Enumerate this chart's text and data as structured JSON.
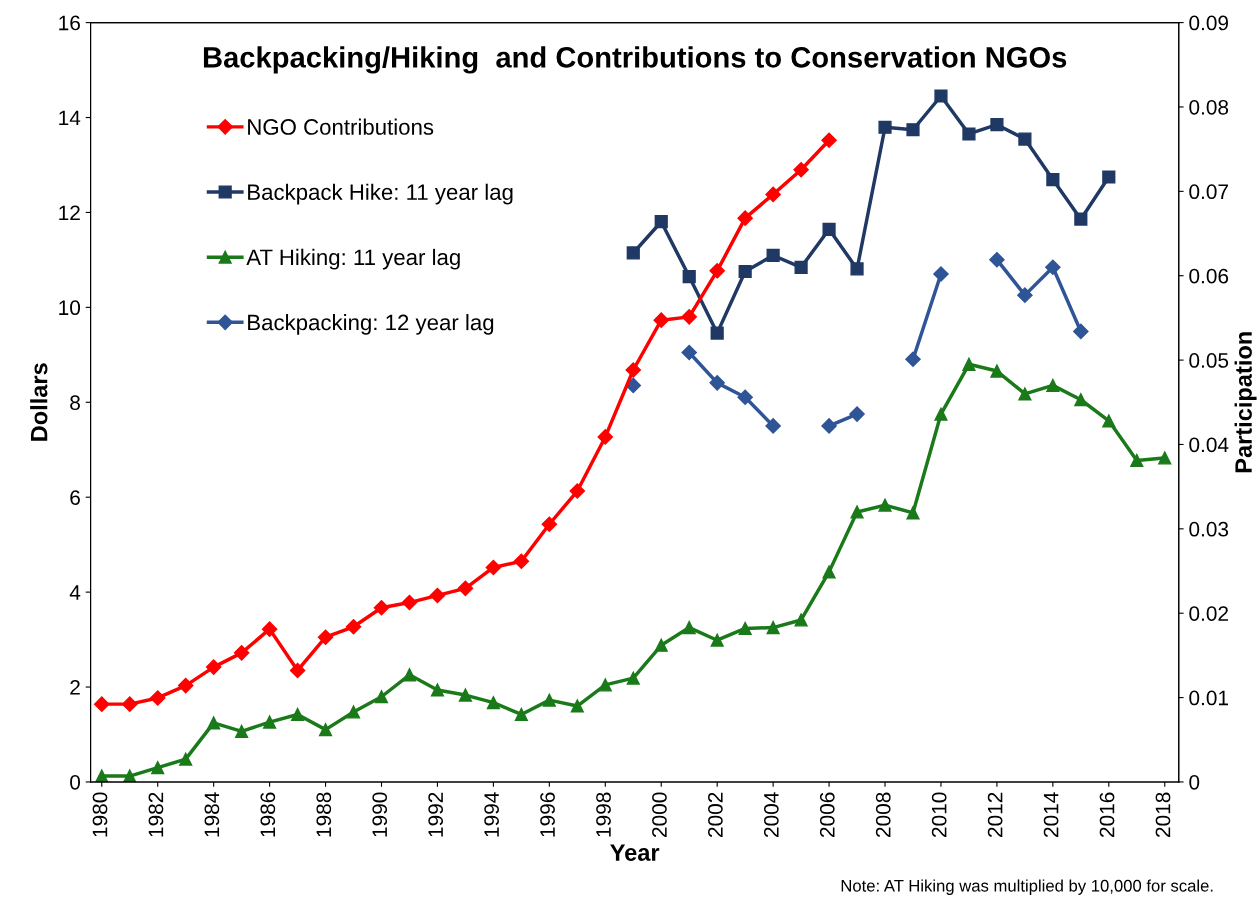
{
  "chart_data": {
    "type": "line",
    "title": "Backpacking/Hiking  and Contributions to Conservation NGOs",
    "xlabel": "Year",
    "ylabel": "Dollars",
    "y2label": "Participation",
    "x": [
      1980,
      1981,
      1982,
      1983,
      1984,
      1985,
      1986,
      1987,
      1988,
      1989,
      1990,
      1991,
      1992,
      1993,
      1994,
      1995,
      1996,
      1997,
      1998,
      1999,
      2000,
      2001,
      2002,
      2003,
      2004,
      2005,
      2006,
      2007,
      2008,
      2009,
      2010,
      2011,
      2012,
      2013,
      2014,
      2015,
      2016,
      2017,
      2018
    ],
    "xlim": [
      1979.6,
      2018.5
    ],
    "xticks": [
      1980,
      1982,
      1984,
      1986,
      1988,
      1990,
      1992,
      1994,
      1996,
      1998,
      2000,
      2002,
      2004,
      2006,
      2008,
      2010,
      2012,
      2014,
      2016,
      2018
    ],
    "ylim": [
      0,
      16
    ],
    "yticks": [
      0,
      2,
      4,
      6,
      8,
      10,
      12,
      14,
      16
    ],
    "y2lim": [
      0,
      0.09
    ],
    "y2ticks": [
      {
        "value": 0,
        "label": "0"
      },
      {
        "value": 0.01,
        "label": "0.01"
      },
      {
        "value": 0.02,
        "label": "0.02"
      },
      {
        "value": 0.03,
        "label": "0.03"
      },
      {
        "value": 0.04,
        "label": "0.04"
      },
      {
        "value": 0.05,
        "label": "0.05"
      },
      {
        "value": 0.06,
        "label": "0.06"
      },
      {
        "value": 0.07,
        "label": "0.07"
      },
      {
        "value": 0.08,
        "label": "0.08"
      },
      {
        "value": 0.09,
        "label": "0.09"
      }
    ],
    "grid": false,
    "legend": "top left",
    "line_style": "solid",
    "series": [
      {
        "name": "NGO Contributions",
        "color": "#ff0000",
        "marker": "diamond",
        "x": [
          1980,
          1981,
          1982,
          1983,
          1984,
          1985,
          1986,
          1987,
          1988,
          1989,
          1990,
          1991,
          1992,
          1993,
          1994,
          1995,
          1996,
          1997,
          1998,
          1999,
          2000,
          2001,
          2002,
          2003,
          2004,
          2005,
          2006
        ],
        "values": [
          1.64,
          1.64,
          1.77,
          2.03,
          2.42,
          2.72,
          3.22,
          2.35,
          3.05,
          3.27,
          3.67,
          3.78,
          3.93,
          4.08,
          4.52,
          4.65,
          5.43,
          6.13,
          7.27,
          8.68,
          9.73,
          9.8,
          10.77,
          11.88,
          12.38,
          12.9,
          13.52
        ]
      },
      {
        "name": "Backpack Hike: 11 year lag",
        "color": "#1f3864",
        "marker": "square",
        "axis": "y2",
        "x": [
          1999,
          2000,
          2001,
          2002,
          2003,
          2004,
          2005,
          2006,
          2007,
          2008,
          2009,
          2010,
          2011,
          2012,
          2013,
          2014,
          2015,
          2016
        ],
        "values": [
          0.0627,
          0.0664,
          0.0599,
          0.0532,
          0.0605,
          0.0624,
          0.061,
          0.0655,
          0.0608,
          0.0776,
          0.0773,
          0.0813,
          0.0768,
          0.0779,
          0.0762,
          0.0714,
          0.0667,
          0.0717
        ]
      },
      {
        "name": "AT Hiking: 11 year lag",
        "color": "#1a7a1a",
        "marker": "triangle",
        "axis": "y2",
        "values": [
          0.0007,
          0.0007,
          0.0017,
          0.0027,
          0.007,
          0.006,
          0.0071,
          0.008,
          0.0062,
          0.0083,
          0.0101,
          0.0127,
          0.0109,
          0.0103,
          0.0094,
          0.008,
          0.0097,
          0.009,
          0.0115,
          0.0123,
          0.0162,
          0.0183,
          0.0168,
          0.0182,
          0.0183,
          0.0192,
          0.0249,
          0.032,
          0.0328,
          0.0319,
          0.0436,
          0.0495,
          0.0487,
          0.046,
          0.047,
          0.0453,
          0.0428,
          0.0381,
          0.0384
        ]
      },
      {
        "name": "Backpacking: 12 year lag",
        "color": "#2f5597",
        "marker": "diamond",
        "axis": "y2",
        "x": [
          1999,
          2000,
          2001,
          2002,
          2003,
          2004,
          2005,
          2006,
          2007,
          2008,
          2009,
          2010,
          2011,
          2012,
          2013,
          2014,
          2015
        ],
        "values": [
          0.047,
          null,
          0.0509,
          0.0473,
          0.0456,
          0.0422,
          null,
          0.0422,
          0.0436,
          null,
          0.0501,
          0.0602,
          null,
          0.0619,
          0.0577,
          0.061,
          0.0534
        ]
      }
    ],
    "annotations": [
      "Note: AT Hiking was multiplied by 10,000 for scale."
    ]
  }
}
